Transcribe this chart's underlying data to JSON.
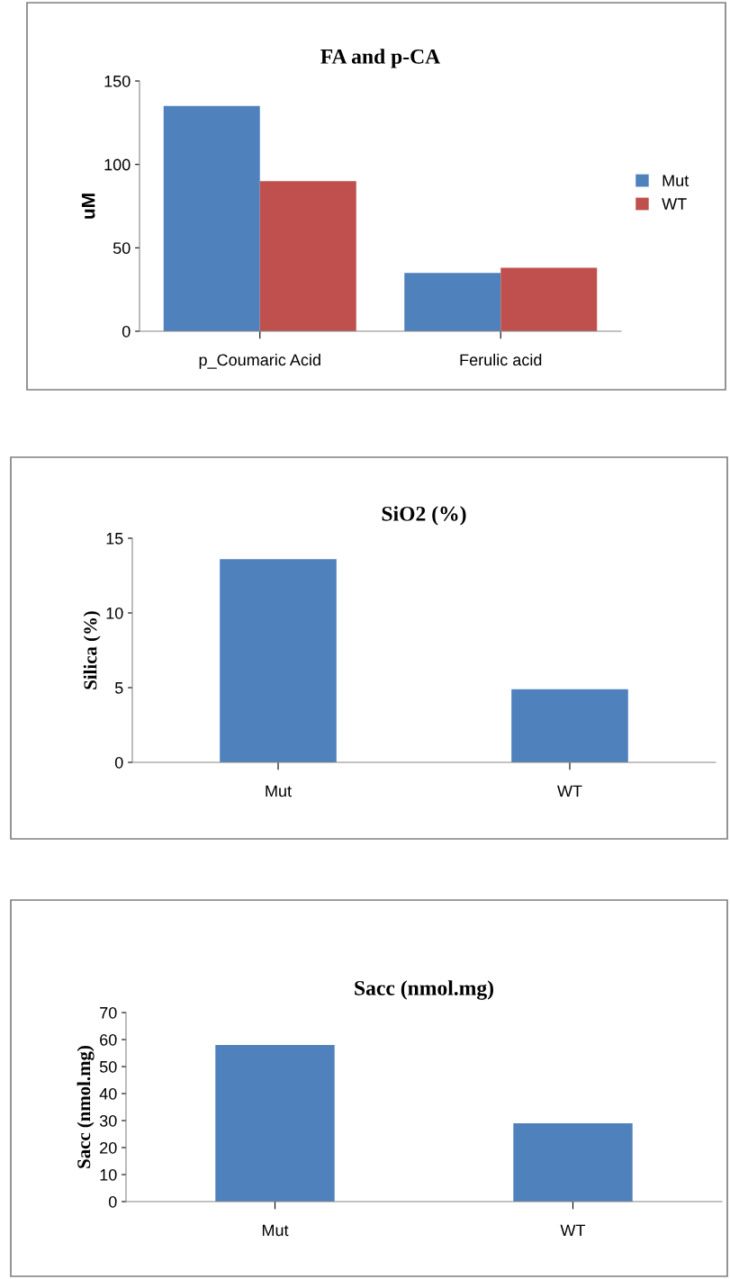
{
  "chart_data": [
    {
      "type": "bar",
      "title": "FA and p-CA",
      "ylabel": "uM",
      "categories": [
        "p_Coumaric Acid",
        "Ferulic acid"
      ],
      "series": [
        {
          "name": "Mut",
          "color": "#4f81bd",
          "values": [
            135,
            35
          ]
        },
        {
          "name": "WT",
          "color": "#c0504d",
          "values": [
            90,
            38
          ]
        }
      ],
      "ylim": [
        0,
        150
      ],
      "yticks": [
        0,
        50,
        100,
        150
      ],
      "legend": "right",
      "grid": false
    },
    {
      "type": "bar",
      "title": "SiO2 (%)",
      "ylabel": "Silica (%)",
      "categories": [
        "Mut",
        "WT"
      ],
      "values": [
        13.6,
        4.9
      ],
      "color": "#4f81bd",
      "ylim": [
        0,
        15
      ],
      "yticks": [
        0,
        5,
        10,
        15
      ],
      "legend": false,
      "grid": false
    },
    {
      "type": "bar",
      "title": "Sacc (nmol.mg)",
      "ylabel": "Sacc (nmol.mg)",
      "categories": [
        "Mut",
        "WT"
      ],
      "values": [
        58,
        29
      ],
      "color": "#4f81bd",
      "ylim": [
        0,
        70
      ],
      "yticks": [
        0,
        10,
        20,
        30,
        40,
        50,
        60,
        70
      ],
      "legend": false,
      "grid": false
    }
  ]
}
